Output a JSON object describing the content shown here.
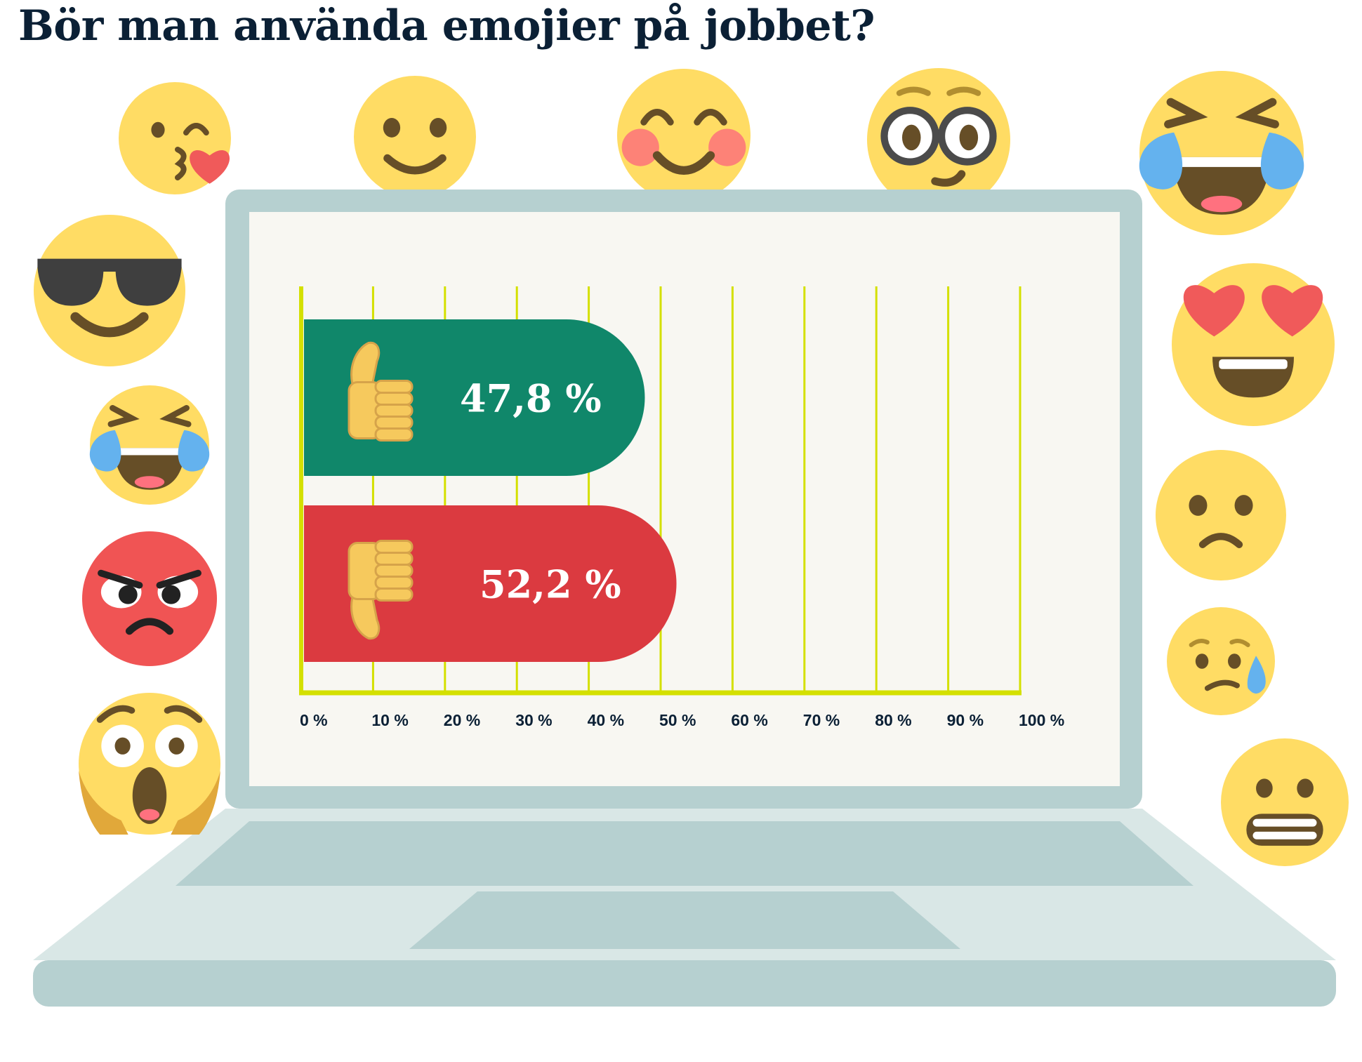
{
  "title": "Bör man använda emojier på jobbet?",
  "colors": {
    "positive": "#10876a",
    "negative": "#db3a40",
    "grid": "#d4e000",
    "laptop": "#b6d0d0",
    "laptop_light": "#d9e7e6",
    "screen": "#f8f7f2",
    "emoji_yellow": "#ffdc64",
    "emoji_brown": "#664e27",
    "title": "#0b2035"
  },
  "emojis": [
    "kissing-heart",
    "slight-smile",
    "blush",
    "nerd-glasses",
    "joy-tears",
    "sunglasses",
    "heart-eyes",
    "joy-tears-small",
    "frown",
    "angry",
    "sad-sweat",
    "scream",
    "grimace"
  ],
  "chart_data": {
    "type": "bar",
    "orientation": "horizontal",
    "categories": [
      "thumbs-up-icon",
      "thumbs-down-icon"
    ],
    "values": [
      47.8,
      52.2
    ],
    "value_labels": [
      "47,8 %",
      "52,2 %"
    ],
    "colors": [
      "#10876a",
      "#db3a40"
    ],
    "xlim": [
      0,
      100
    ],
    "xticks": [
      0,
      10,
      20,
      30,
      40,
      50,
      60,
      70,
      80,
      90,
      100
    ],
    "xtick_labels": [
      "0 %",
      "10 %",
      "20 %",
      "30 %",
      "40 %",
      "50 %",
      "60 %",
      "70 %",
      "80 %",
      "90 %",
      "100 %"
    ],
    "grid": true,
    "title": "Bör man använda emojier på jobbet?"
  }
}
